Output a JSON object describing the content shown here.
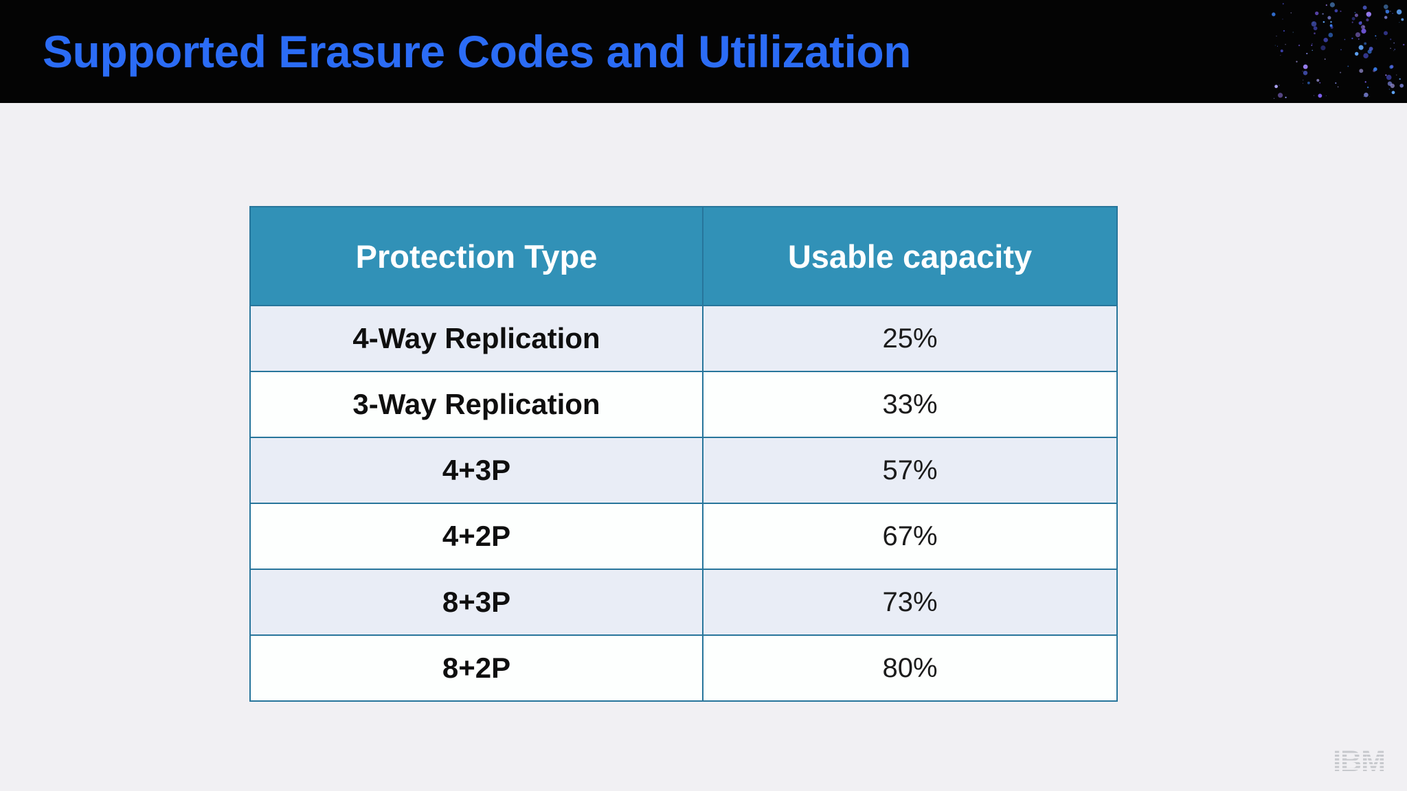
{
  "slide": {
    "title": "Supported Erasure Codes and Utilization",
    "title_color": "#2b6cf6",
    "header_bar_color": "#040404",
    "background_color": "#f1f0f3"
  },
  "table": {
    "columns": [
      {
        "label": "Protection Type"
      },
      {
        "label": "Usable capacity"
      }
    ],
    "rows": [
      {
        "protection_type": "4-Way Replication",
        "usable_capacity": "25%"
      },
      {
        "protection_type": "3-Way Replication",
        "usable_capacity": "33%"
      },
      {
        "protection_type": "4+3P",
        "usable_capacity": "57%"
      },
      {
        "protection_type": "4+2P",
        "usable_capacity": "67%"
      },
      {
        "protection_type": "8+3P",
        "usable_capacity": "73%"
      },
      {
        "protection_type": "8+2P",
        "usable_capacity": "80%"
      }
    ],
    "header_bg": "#3191b7",
    "header_text_color": "#ffffff",
    "border_color": "#27759b",
    "row_alt_bg": "#e9edf6",
    "row_bg": "#fdfffe"
  },
  "footer": {
    "logo_text": "IBM",
    "logo_color": "#c7c9cd"
  },
  "decoration": {
    "name": "particle-dots",
    "colors": [
      "#3b82f6",
      "#5b6cf3",
      "#7c5ff0",
      "#9d7ff5",
      "#60a5fa",
      "#8890f0",
      "#4a4fd0",
      "#b0a6f7"
    ]
  }
}
